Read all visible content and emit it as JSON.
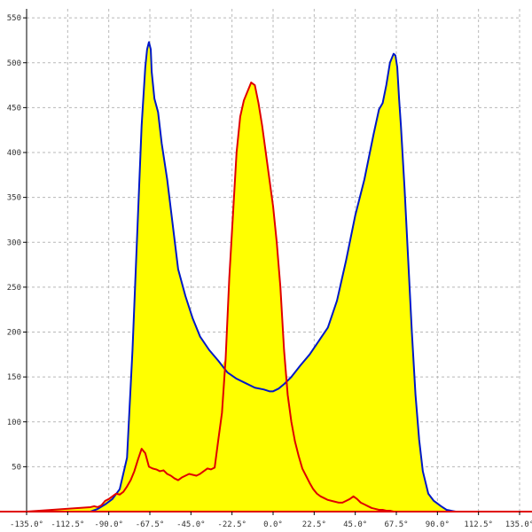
{
  "chart_data": {
    "type": "area",
    "title": "",
    "xlabel": "",
    "ylabel": "",
    "xlim": [
      -135,
      135
    ],
    "ylim": [
      0,
      560
    ],
    "grid": true,
    "legend": "none",
    "x_ticks": [
      -135,
      -112.5,
      -90,
      -67.5,
      -45,
      -22.5,
      0,
      22.5,
      45,
      67.5,
      90,
      112.5,
      135
    ],
    "x_tick_labels": [
      "-135.0°",
      "-112.5°",
      "-90.0°",
      "-67.5°",
      "-45.0°",
      "-22.5°",
      "0.0°",
      "22.5°",
      "45.0°",
      "67.5°",
      "90.0°",
      "112.5°",
      "135.0°"
    ],
    "y_ticks": [
      50,
      100,
      150,
      200,
      250,
      300,
      350,
      400,
      450,
      500,
      550
    ],
    "y_tick_labels": [
      "50",
      "100",
      "150",
      "200",
      "250",
      "300",
      "350",
      "400",
      "450",
      "500",
      "550"
    ],
    "colors": {
      "fill": "#ffff00",
      "blue": "#0018c8",
      "red": "#e00000",
      "grid": "#b8b8b8"
    },
    "series": [
      {
        "color": "#0018c8",
        "x": [
          -135,
          -100,
          -96,
          -92,
          -88,
          -84,
          -80,
          -77,
          -74,
          -72,
          -70,
          -69,
          -68,
          -67,
          -66.5,
          -65,
          -63,
          -61,
          -58,
          -55,
          -52,
          -48,
          -44,
          -40,
          -35,
          -30,
          -25,
          -20,
          -15,
          -10,
          -5,
          -2,
          0,
          3,
          6,
          10,
          15,
          20,
          25,
          30,
          35,
          40,
          45,
          50,
          55,
          58,
          60,
          62,
          64,
          66,
          67,
          68,
          69,
          70,
          72,
          74,
          76,
          78,
          80,
          82,
          85,
          88,
          92,
          95,
          100,
          135
        ],
        "y": [
          0,
          0,
          3,
          8,
          14,
          25,
          60,
          180,
          330,
          430,
          495,
          515,
          523,
          515,
          490,
          460,
          445,
          410,
          370,
          320,
          270,
          240,
          215,
          195,
          180,
          168,
          155,
          148,
          143,
          138,
          136,
          134,
          134,
          137,
          142,
          150,
          163,
          175,
          190,
          205,
          235,
          280,
          330,
          370,
          420,
          448,
          455,
          475,
          500,
          510,
          508,
          495,
          460,
          430,
          360,
          280,
          200,
          130,
          80,
          45,
          20,
          12,
          6,
          2,
          0,
          0
        ]
      },
      {
        "color": "#e00000",
        "x": [
          -135,
          -100,
          -98,
          -96,
          -94,
          -92,
          -90,
          -88,
          -86,
          -84,
          -82,
          -80,
          -78,
          -76,
          -74,
          -72,
          -70,
          -68,
          -66,
          -64,
          -62,
          -60,
          -58,
          -56,
          -54,
          -52,
          -50,
          -48,
          -46,
          -44,
          -42,
          -40,
          -38,
          -36,
          -34,
          -32,
          -30,
          -28,
          -26,
          -24,
          -22,
          -20,
          -18,
          -16,
          -14,
          -12,
          -10,
          -8,
          -6,
          -4,
          -2,
          0,
          2,
          4,
          6,
          8,
          10,
          12,
          14,
          16,
          18,
          20,
          22,
          24,
          26,
          28,
          30,
          32,
          34,
          36,
          38,
          40,
          42,
          44,
          46,
          48,
          50,
          52,
          54,
          56,
          58,
          60,
          62,
          64,
          66,
          68,
          70,
          72,
          74,
          76,
          78,
          80,
          82,
          84,
          86,
          88,
          89,
          90,
          91,
          92,
          94,
          96,
          98,
          100,
          102,
          135
        ],
        "y": [
          0,
          5,
          6,
          5,
          7,
          12,
          14,
          17,
          20,
          19,
          22,
          28,
          35,
          45,
          58,
          70,
          65,
          50,
          48,
          47,
          45,
          46,
          42,
          40,
          37,
          35,
          38,
          40,
          42,
          41,
          40,
          42,
          45,
          48,
          47,
          49,
          80,
          110,
          170,
          260,
          330,
          400,
          440,
          458,
          468,
          478,
          475,
          455,
          430,
          400,
          370,
          340,
          300,
          250,
          180,
          130,
          100,
          78,
          62,
          48,
          40,
          32,
          25,
          20,
          17,
          15,
          13,
          12,
          11,
          10,
          10,
          12,
          14,
          17,
          14,
          10,
          8,
          6,
          4,
          3,
          2,
          2,
          1,
          1,
          0,
          0,
          0,
          0,
          0,
          0,
          0,
          0,
          0,
          0,
          0,
          0,
          0,
          0,
          0,
          0,
          0,
          0,
          0,
          0,
          0,
          0
        ]
      }
    ]
  }
}
